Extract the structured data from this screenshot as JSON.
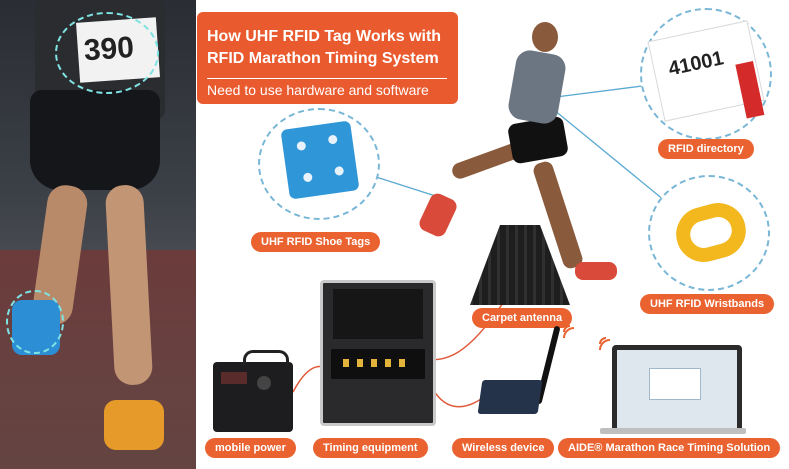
{
  "banner": {
    "title": "How UHF RFID Tag Works with RFID Marathon Timing System",
    "subtitle": "Need to use hardware and software"
  },
  "photo": {
    "bib_number": "390"
  },
  "bib_card": {
    "number": "41001"
  },
  "labels": {
    "rfid_directory": "RFID directory",
    "shoe_tags": "UHF RFID Shoe Tags",
    "wristbands": "UHF RFID Wristbands",
    "carpet_antenna": "Carpet antenna",
    "mobile_power": "mobile power",
    "timing_equipment": "Timing equipment",
    "wireless_device": "Wireless device",
    "software": "AIDE® Marathon Race Timing Solution"
  },
  "colors": {
    "accent": "#e9622f",
    "connector": "#e05a3a",
    "callout": "#5aa9d2"
  }
}
